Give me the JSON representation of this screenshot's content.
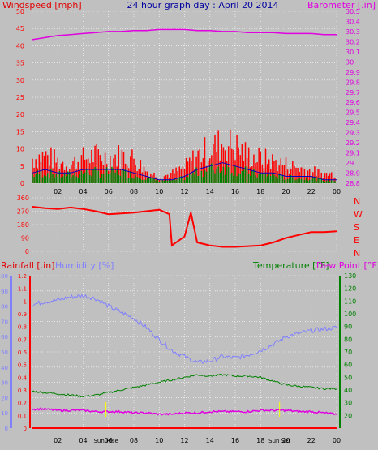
{
  "colors": {
    "background": "#c0c0c0",
    "wind": "#ff0000",
    "wind_avg": "#0000c0",
    "wind_gust2": "#008000",
    "barometer": "#e000e0",
    "direction": "#ff0000",
    "humidity": "#8080ff",
    "temperature": "#008000",
    "dew_point": "#e000e0",
    "rainfall": "#ff0000",
    "title": "#0000a0",
    "grid": "#ffffff",
    "sun_marker": "#ffff00"
  },
  "chart_data": [
    {
      "type": "line",
      "title": "24 hour graph day : April 20 2014",
      "left_axis_label": "Windspeed [mph]",
      "right_axis_label": "Barometer [.in]",
      "x_ticks": [
        "02",
        "04",
        "06",
        "08",
        "10",
        "12",
        "14",
        "16",
        "18",
        "20",
        "22",
        "00"
      ],
      "left_ylim": [
        0,
        50
      ],
      "left_ticks": [
        "0",
        "5",
        "10",
        "15",
        "20",
        "25",
        "30",
        "35",
        "40",
        "45",
        "50"
      ],
      "right_ylim": [
        28.8,
        30.5
      ],
      "right_ticks": [
        "28.8",
        "28.9",
        "29",
        "29.1",
        "29.2",
        "29.3",
        "29.4",
        "29.5",
        "29.6",
        "29.7",
        "29.8",
        "29.9",
        "30",
        "30.1",
        "30.2",
        "30.3",
        "30.4",
        "30.5"
      ],
      "grid": true,
      "series": [
        {
          "name": "Barometer [.in]",
          "axis": "right",
          "x": [
            0,
            1,
            2,
            3,
            4,
            5,
            6,
            7,
            8,
            9,
            10,
            11,
            12,
            13,
            14,
            15,
            16,
            17,
            18,
            19,
            20,
            21,
            22,
            23,
            24
          ],
          "values": [
            30.22,
            30.24,
            30.26,
            30.27,
            30.28,
            30.29,
            30.3,
            30.3,
            30.31,
            30.31,
            30.32,
            30.32,
            30.32,
            30.31,
            30.31,
            30.3,
            30.3,
            30.29,
            30.29,
            30.29,
            30.28,
            30.28,
            30.28,
            30.27,
            30.27
          ]
        },
        {
          "name": "Windspeed [mph]",
          "axis": "left",
          "x": [
            0,
            1,
            2,
            3,
            4,
            5,
            6,
            7,
            8,
            9,
            10,
            11,
            12,
            13,
            14,
            15,
            16,
            17,
            18,
            19,
            20,
            21,
            22,
            23,
            24
          ],
          "values": [
            8,
            9,
            7,
            6,
            8,
            9,
            8,
            9,
            8,
            4,
            2,
            3,
            5,
            9,
            11,
            13,
            12,
            9,
            8,
            7,
            6,
            5,
            4,
            3,
            3
          ]
        },
        {
          "name": "Average wind",
          "axis": "left",
          "x": [
            0,
            1,
            2,
            3,
            4,
            5,
            6,
            7,
            8,
            9,
            10,
            11,
            12,
            13,
            14,
            15,
            16,
            17,
            18,
            19,
            20,
            21,
            22,
            23,
            24
          ],
          "values": [
            3,
            4,
            3,
            3,
            4,
            4,
            4,
            4,
            3,
            2,
            1,
            1,
            2,
            4,
            5,
            6,
            5,
            4,
            3,
            3,
            2,
            2,
            2,
            1,
            1
          ]
        }
      ]
    },
    {
      "type": "line",
      "title": "",
      "left_ylim": [
        0,
        360
      ],
      "left_ticks": [
        "0",
        "90",
        "180",
        "270",
        "360"
      ],
      "right_ticks": [
        "N",
        "W",
        "S",
        "E",
        "N"
      ],
      "grid": true,
      "series": [
        {
          "name": "Wind direction",
          "x": [
            0,
            1,
            2,
            3,
            4,
            5,
            6,
            7,
            8,
            9,
            10,
            10.8,
            11,
            12,
            12.5,
            13,
            14,
            15,
            16,
            17,
            18,
            19,
            20,
            21,
            22,
            23,
            24
          ],
          "values": [
            300,
            290,
            285,
            295,
            285,
            270,
            250,
            255,
            260,
            270,
            280,
            250,
            40,
            100,
            260,
            60,
            40,
            30,
            30,
            35,
            40,
            60,
            90,
            110,
            130,
            130,
            135
          ]
        }
      ]
    },
    {
      "type": "line",
      "title": "",
      "left_axis_labels": [
        "Rainfall [.in]",
        "Humidity [%]"
      ],
      "right_axis_labels": [
        "Temperature [°F]",
        "Dew Point [°F]"
      ],
      "humidity_ylim": [
        0,
        100
      ],
      "humidity_ticks": [
        "0",
        "10",
        "20",
        "30",
        "40",
        "50",
        "60",
        "70",
        "80",
        "90",
        "100"
      ],
      "rain_ylim": [
        0,
        1.2
      ],
      "rain_ticks": [
        "0",
        "0.1",
        "0.2",
        "0.3",
        "0.4",
        "0.5",
        "0.6",
        "0.7",
        "0.8",
        "0.9",
        "1",
        "1.1",
        "1.2"
      ],
      "temp_ylim": [
        10,
        130
      ],
      "temp_ticks": [
        "20",
        "30",
        "40",
        "50",
        "60",
        "70",
        "80",
        "90",
        "100",
        "110",
        "120",
        "130"
      ],
      "x_ticks": [
        "02",
        "04",
        "06",
        "08",
        "10",
        "12",
        "14",
        "16",
        "18",
        "20",
        "22",
        "00"
      ],
      "sun_labels": [
        "Sun Rise",
        "Sun Set"
      ],
      "grid": true,
      "series": [
        {
          "name": "Humidity [%]",
          "axis": "humidity",
          "x": [
            0,
            1,
            2,
            3,
            4,
            5,
            6,
            7,
            8,
            9,
            10,
            11,
            12,
            13,
            14,
            15,
            16,
            17,
            18,
            19,
            20,
            21,
            22,
            23,
            24
          ],
          "values": [
            81,
            83,
            84,
            86,
            87,
            85,
            80,
            76,
            72,
            66,
            58,
            51,
            47,
            43,
            44,
            47,
            46,
            48,
            51,
            55,
            60,
            62,
            64,
            65,
            66
          ]
        },
        {
          "name": "Temperature [°F]",
          "axis": "temp",
          "x": [
            0,
            1,
            2,
            3,
            4,
            5,
            6,
            7,
            8,
            9,
            10,
            11,
            12,
            13,
            14,
            15,
            16,
            17,
            18,
            19,
            20,
            21,
            22,
            23,
            24
          ],
          "values": [
            39,
            38,
            37,
            36,
            35,
            36,
            38,
            40,
            42,
            44,
            46,
            48,
            50,
            52,
            51,
            52,
            51,
            51,
            50,
            47,
            44,
            43,
            42,
            41,
            41
          ]
        },
        {
          "name": "Dew Point [°F]",
          "axis": "temp",
          "x": [
            0,
            1,
            2,
            3,
            4,
            5,
            6,
            7,
            8,
            9,
            10,
            11,
            12,
            13,
            14,
            15,
            16,
            17,
            18,
            19,
            20,
            21,
            22,
            23,
            24
          ],
          "values": [
            25,
            25,
            24,
            24,
            24,
            23,
            23,
            23,
            22,
            22,
            21,
            21,
            22,
            22,
            23,
            23,
            23,
            23,
            24,
            24,
            24,
            23,
            23,
            22,
            21
          ]
        },
        {
          "name": "Rainfall [.in]",
          "axis": "rain",
          "x": [
            0,
            24
          ],
          "values": [
            0,
            0
          ]
        }
      ]
    }
  ]
}
